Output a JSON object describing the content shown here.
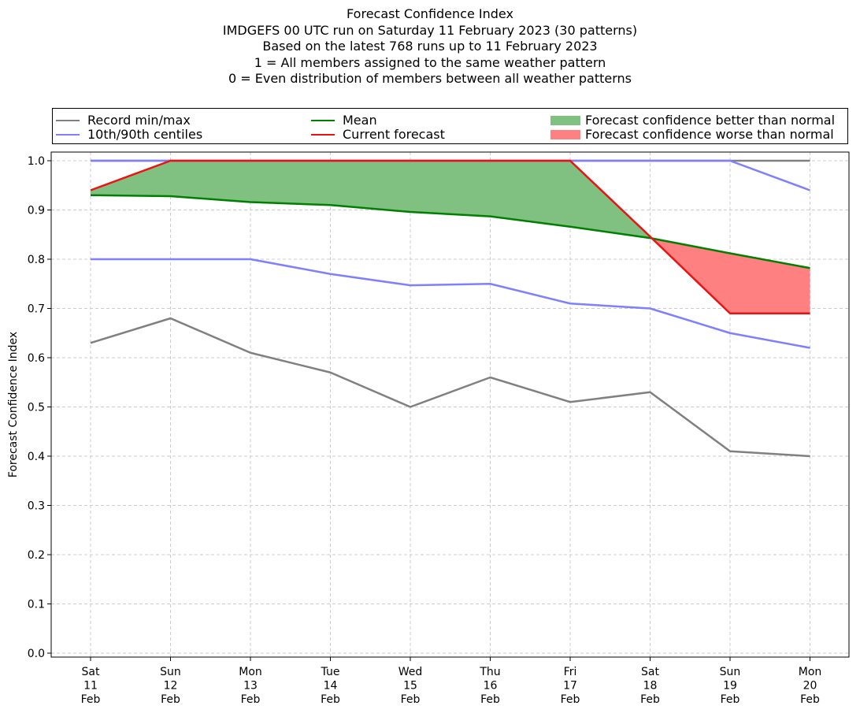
{
  "title_lines": [
    "Forecast Confidence Index",
    "IMDGEFS 00 UTC run on Saturday 11 February 2023 (30 patterns)",
    "Based on the latest 768 runs up to 11 February 2023",
    "1 = All members assigned to the same weather pattern",
    "0 = Even distribution of members between all weather patterns"
  ],
  "legend": {
    "record": "Record min/max",
    "centiles": "10th/90th centiles",
    "mean": "Mean",
    "current": "Current forecast",
    "better": "Forecast confidence better than normal",
    "worse": "Forecast confidence worse than normal"
  },
  "colors": {
    "record": "#808080",
    "centiles": "#7f7fff",
    "mean": "#008000",
    "current": "#ee1111",
    "better": "#80c080",
    "worse": "#ff8080",
    "grid": "#cccccc"
  },
  "chart_data": {
    "type": "line",
    "ylabel": "Forecast Confidence Index",
    "ylim": [
      0.0,
      1.0
    ],
    "yticks": [
      "0.0",
      "0.1",
      "0.2",
      "0.3",
      "0.4",
      "0.5",
      "0.6",
      "0.7",
      "0.8",
      "0.9",
      "1.0"
    ],
    "grid": true,
    "legend_position": "top",
    "categories": [
      [
        "Sat",
        "11",
        "Feb"
      ],
      [
        "Sun",
        "12",
        "Feb"
      ],
      [
        "Mon",
        "13",
        "Feb"
      ],
      [
        "Tue",
        "14",
        "Feb"
      ],
      [
        "Wed",
        "15",
        "Feb"
      ],
      [
        "Thu",
        "16",
        "Feb"
      ],
      [
        "Fri",
        "17",
        "Feb"
      ],
      [
        "Sat",
        "18",
        "Feb"
      ],
      [
        "Sun",
        "19",
        "Feb"
      ],
      [
        "Mon",
        "20",
        "Feb"
      ]
    ],
    "series": [
      {
        "name": "Record min/max",
        "key": "record_max",
        "values": [
          1.0,
          1.0,
          1.0,
          1.0,
          1.0,
          1.0,
          1.0,
          1.0,
          1.0,
          1.0
        ]
      },
      {
        "name": "Record min/max",
        "key": "record_min",
        "values": [
          0.63,
          0.68,
          0.61,
          0.57,
          0.5,
          0.56,
          0.51,
          0.53,
          0.41,
          0.4
        ]
      },
      {
        "name": "10th/90th centiles",
        "key": "p90",
        "values": [
          1.0,
          1.0,
          1.0,
          1.0,
          1.0,
          1.0,
          1.0,
          1.0,
          1.0,
          0.94
        ]
      },
      {
        "name": "10th/90th centiles",
        "key": "p10",
        "values": [
          0.8,
          0.8,
          0.8,
          0.77,
          0.747,
          0.75,
          0.71,
          0.7,
          0.65,
          0.62
        ]
      },
      {
        "name": "Mean",
        "key": "mean",
        "values": [
          0.93,
          0.928,
          0.916,
          0.91,
          0.896,
          0.887,
          0.866,
          0.843,
          0.812,
          0.782
        ]
      },
      {
        "name": "Current forecast",
        "key": "current",
        "values": [
          0.94,
          1.0,
          1.0,
          1.0,
          1.0,
          1.0,
          1.0,
          0.846,
          0.69,
          0.69
        ]
      }
    ]
  }
}
